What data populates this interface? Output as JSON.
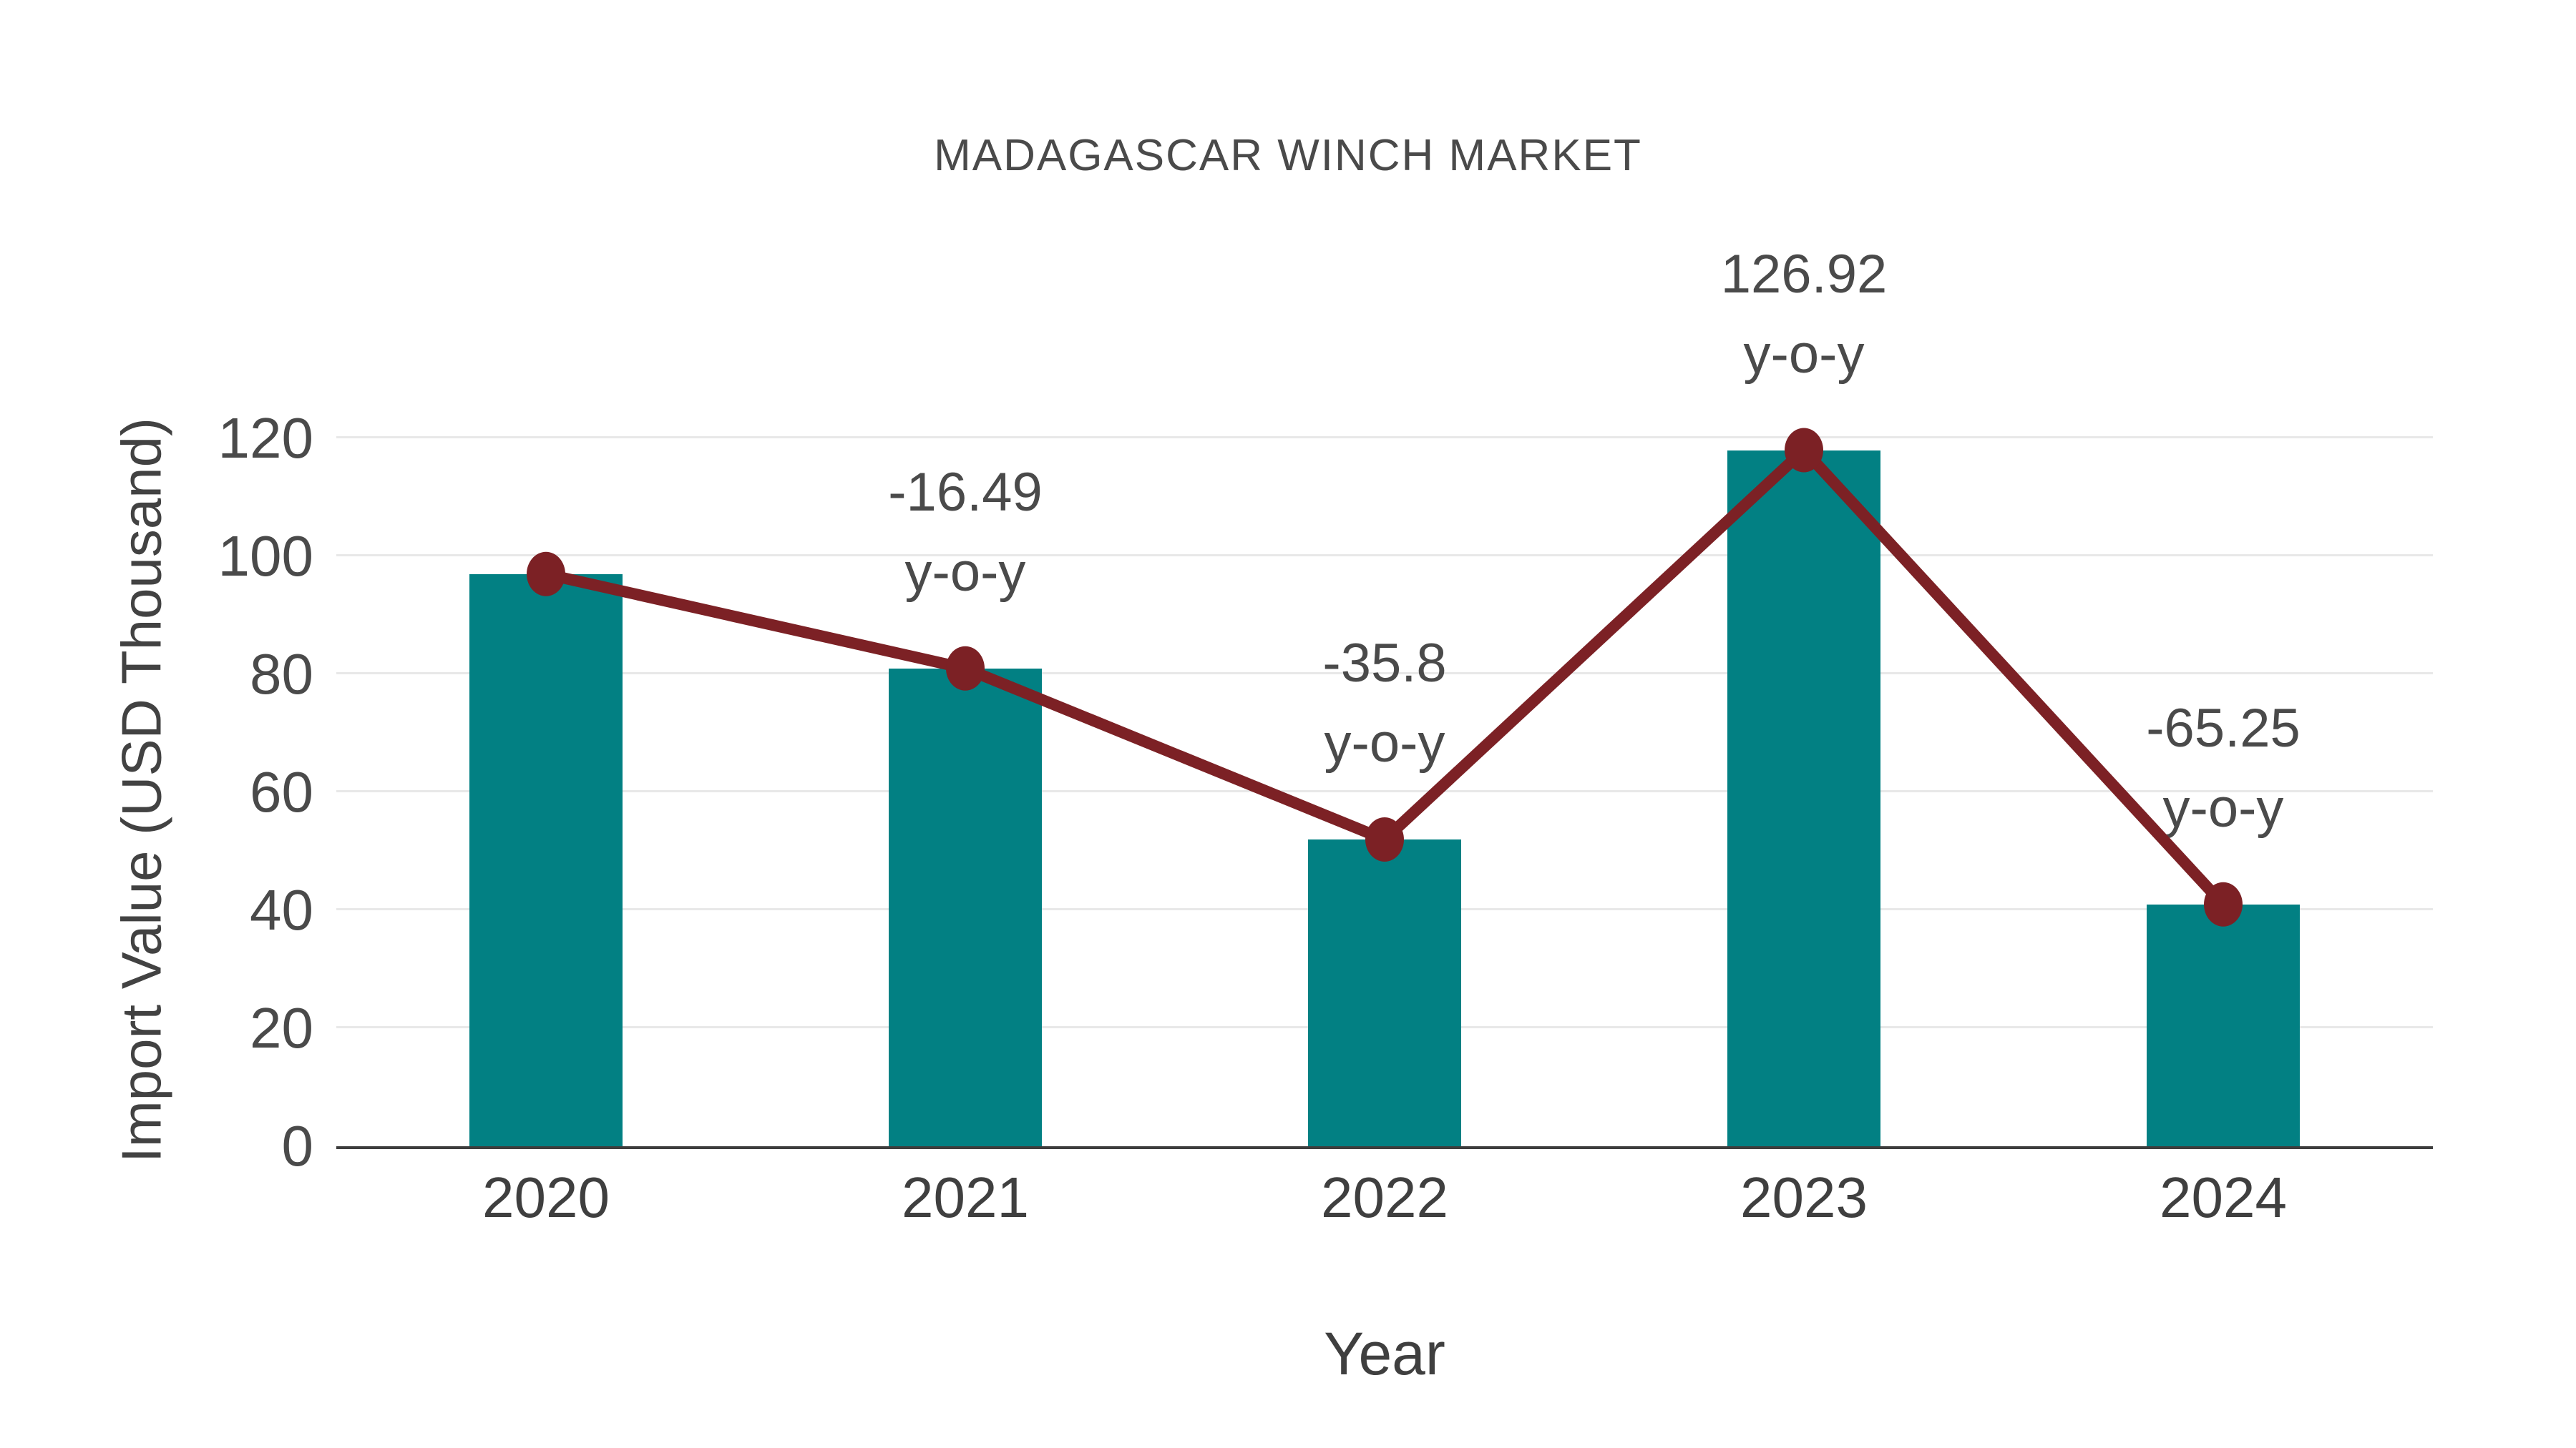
{
  "chart_data": {
    "type": "bar+line",
    "title": "MADAGASCAR WINCH MARKET",
    "xlabel": "Year",
    "ylabel": "Import Value (USD Thousand)",
    "categories": [
      "2020",
      "2021",
      "2022",
      "2023",
      "2024"
    ],
    "series": [
      {
        "name": "Import Value",
        "type": "bar",
        "values": [
          97,
          81,
          52,
          118,
          41
        ],
        "color": "#028083"
      },
      {
        "name": "y-o-y change",
        "type": "line",
        "values": [
          97,
          81,
          52,
          118,
          41
        ],
        "color": "#7c2125",
        "annotations": [
          "",
          "-16.49",
          "-35.8",
          "126.92",
          "-65.25"
        ],
        "annotation_suffix": "y-o-y"
      }
    ],
    "ylim": [
      0,
      120
    ],
    "yticks": [
      0,
      20,
      40,
      60,
      80,
      100,
      120
    ],
    "grid": true,
    "legend": "none"
  },
  "colors": {
    "bar": "#028083",
    "line": "#7c2125",
    "grid": "#e8e8e8",
    "axis": "#3d3d3d",
    "text": "#4a4a4a",
    "background": "#ffffff"
  }
}
